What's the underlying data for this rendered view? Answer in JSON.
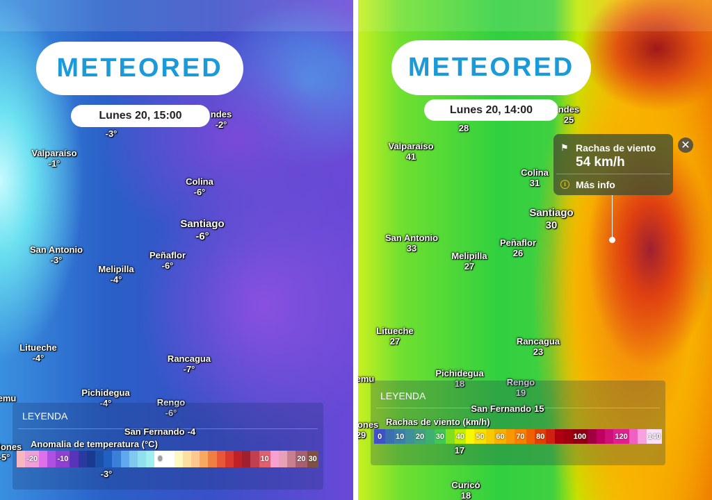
{
  "left": {
    "logo": "METEORED",
    "date": "Lunes 20, 15:00",
    "labels": [
      {
        "name": "Valparaíso",
        "value": "-1°"
      },
      {
        "name": "",
        "value": "-3°"
      },
      {
        "name": "ndes",
        "value": "-2°"
      },
      {
        "name": "Colina",
        "value": "-6°"
      },
      {
        "name": "Santiago",
        "value": "-6°"
      },
      {
        "name": "San Antonio",
        "value": "-3°"
      },
      {
        "name": "Peñaflor",
        "value": "-6°"
      },
      {
        "name": "Melipilla",
        "value": "-4°"
      },
      {
        "name": "Litueche",
        "value": "-4°"
      },
      {
        "name": "Rancagua",
        "value": "-7°"
      },
      {
        "name": "Pichidegua",
        "value": "-4°"
      },
      {
        "name": "Rengo",
        "value": "-6°"
      },
      {
        "name": "emu",
        "value": ""
      },
      {
        "name": "San Fernando",
        "value": "-4"
      },
      {
        "name": "redones",
        "value": "-5°"
      },
      {
        "name": "",
        "value": "-3°"
      }
    ],
    "legend": {
      "heading": "LEYENDA",
      "title": "Anomalia de temperatura (°C)",
      "stops": [
        {
          "color": "#f7b7c0",
          "label": ""
        },
        {
          "color": "#f0a0d8",
          "label": "-20"
        },
        {
          "color": "#e070e8",
          "label": ""
        },
        {
          "color": "#b050e0",
          "label": ""
        },
        {
          "color": "#9040d0",
          "label": "-10"
        },
        {
          "color": "#5a34b8",
          "label": ""
        },
        {
          "color": "#2a3aa0",
          "label": ""
        },
        {
          "color": "#1a3a90",
          "label": ""
        },
        {
          "color": "#1a50a8",
          "label": ""
        },
        {
          "color": "#2060c0",
          "label": ""
        },
        {
          "color": "#3a80d8",
          "label": ""
        },
        {
          "color": "#60a8f0",
          "label": ""
        },
        {
          "color": "#80c8f0",
          "label": ""
        },
        {
          "color": "#90e0f0",
          "label": ""
        },
        {
          "color": "#a0f0f0",
          "label": ""
        },
        {
          "color": "#ffffff",
          "label": "0"
        },
        {
          "color": "#ffffff",
          "label": ""
        },
        {
          "color": "#fff8c0",
          "label": ""
        },
        {
          "color": "#fde0a0",
          "label": ""
        },
        {
          "color": "#fcc890",
          "label": ""
        },
        {
          "color": "#f8a860",
          "label": ""
        },
        {
          "color": "#f08040",
          "label": ""
        },
        {
          "color": "#e85838",
          "label": ""
        },
        {
          "color": "#d83830",
          "label": ""
        },
        {
          "color": "#c02028",
          "label": ""
        },
        {
          "color": "#a02030",
          "label": ""
        },
        {
          "color": "#c04050",
          "label": ""
        },
        {
          "color": "#e06070",
          "label": "10"
        },
        {
          "color": "#f8a0d0",
          "label": ""
        },
        {
          "color": "#e8a0b8",
          "label": ""
        },
        {
          "color": "#c88090",
          "label": ""
        },
        {
          "color": "#a86070",
          "label": "20"
        },
        {
          "color": "#805040",
          "label": "30"
        }
      ]
    }
  },
  "right": {
    "logo": "METEORED",
    "date": "Lunes 20, 14:00",
    "labels": [
      {
        "name": "Valparaíso",
        "value": "41"
      },
      {
        "name": "",
        "value": "28"
      },
      {
        "name": "ndes",
        "value": "25"
      },
      {
        "name": "Colina",
        "value": "31"
      },
      {
        "name": "Santiago",
        "value": "30"
      },
      {
        "name": "San Antonio",
        "value": "33"
      },
      {
        "name": "Peñaflor",
        "value": "26"
      },
      {
        "name": "Melipilla",
        "value": "27"
      },
      {
        "name": "Litueche",
        "value": "27"
      },
      {
        "name": "Rancagua",
        "value": "23"
      },
      {
        "name": "Pichidegua",
        "value": "18"
      },
      {
        "name": "Rengo",
        "value": "19"
      },
      {
        "name": "emu",
        "value": ""
      },
      {
        "name": "San Fernando",
        "value": "15"
      },
      {
        "name": "redones",
        "value": "29"
      },
      {
        "name": "",
        "value": "17"
      },
      {
        "name": "Curicó",
        "value": "18"
      }
    ],
    "popup": {
      "icon": "wind-flag-icon",
      "title": "Rachas de viento",
      "value": "54 km/h",
      "more": "Más info",
      "close": "✕"
    },
    "legend": {
      "heading": "LEYENDA",
      "title": "Rachas de viento (km/h)",
      "stops": [
        {
          "color": "#4050c8",
          "label": "0"
        },
        {
          "color": "#3a70b0",
          "label": ""
        },
        {
          "color": "#3a80a8",
          "label": "10"
        },
        {
          "color": "#40909a",
          "label": ""
        },
        {
          "color": "#40a080",
          "label": "20"
        },
        {
          "color": "#40b070",
          "label": ""
        },
        {
          "color": "#40c850",
          "label": "30"
        },
        {
          "color": "#80e020",
          "label": ""
        },
        {
          "color": "#c0f000",
          "label": "40"
        },
        {
          "color": "#f8f800",
          "label": ""
        },
        {
          "color": "#f8e000",
          "label": "50"
        },
        {
          "color": "#f8c800",
          "label": ""
        },
        {
          "color": "#f8b000",
          "label": "60"
        },
        {
          "color": "#f89800",
          "label": ""
        },
        {
          "color": "#f88000",
          "label": "70"
        },
        {
          "color": "#f06000",
          "label": ""
        },
        {
          "color": "#e04000",
          "label": "80"
        },
        {
          "color": "#d02010",
          "label": ""
        },
        {
          "color": "#b00010",
          "label": ""
        },
        {
          "color": "#a00010",
          "label": ""
        },
        {
          "color": "#900010",
          "label": "100"
        },
        {
          "color": "#a00040",
          "label": ""
        },
        {
          "color": "#c00060",
          "label": ""
        },
        {
          "color": "#d01078",
          "label": ""
        },
        {
          "color": "#e02090",
          "label": "120"
        },
        {
          "color": "#f060c0",
          "label": ""
        },
        {
          "color": "#f8a0e0",
          "label": ""
        },
        {
          "color": "#fce0f8",
          "label": "140"
        }
      ]
    }
  }
}
